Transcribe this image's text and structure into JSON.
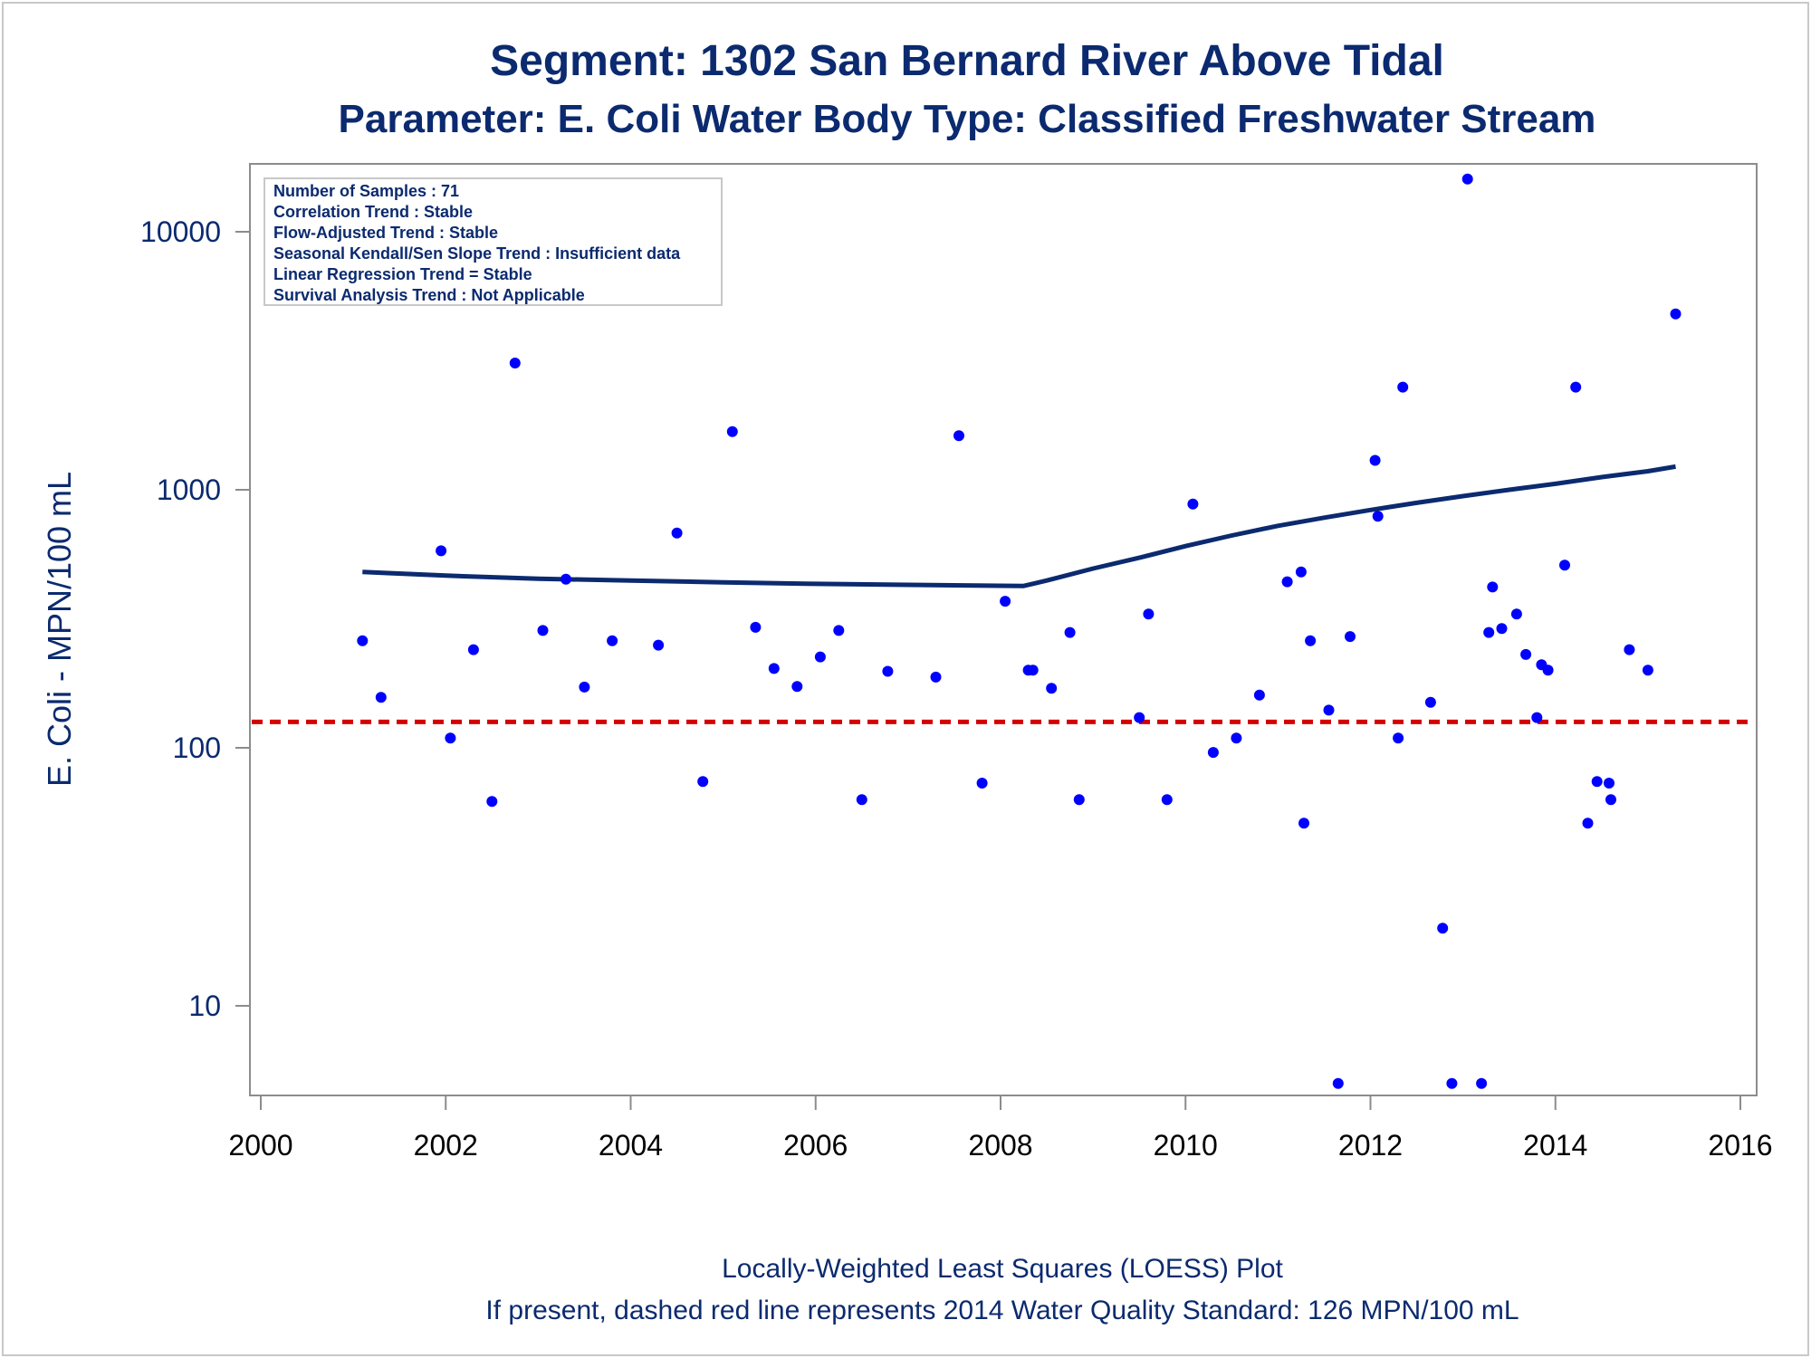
{
  "chart_data": {
    "type": "scatter",
    "title": "Segment: 1302  San Bernard River Above Tidal",
    "subtitle": "Parameter: E. Coli   Water Body Type: Classified Freshwater Stream",
    "xlabel": "",
    "ylabel": "E. Coli - MPN/100 mL",
    "x_scale": "linear",
    "y_scale": "log",
    "xlim": [
      2000,
      2016
    ],
    "ylim": [
      4.9,
      17000
    ],
    "x_ticks": [
      "2000",
      "2002",
      "2004",
      "2006",
      "2008",
      "2010",
      "2012",
      "2014",
      "2016"
    ],
    "y_ticks": [
      {
        "value": 10,
        "label": "10"
      },
      {
        "value": 100,
        "label": "100"
      },
      {
        "value": 1000,
        "label": "1000"
      },
      {
        "value": 10000,
        "label": "10000"
      }
    ],
    "grid": false,
    "info_box": [
      "Number of Samples : 71",
      "Correlation Trend : Stable",
      "Flow-Adjusted Trend : Stable",
      "Seasonal Kendall/Sen Slope Trend : Insufficient data",
      "Linear Regression Trend = Stable",
      "Survival Analysis Trend : Not Applicable"
    ],
    "reference_line": {
      "value": 126,
      "style": "dashed",
      "color": "#d40000"
    },
    "footnotes": [
      "Locally-Weighted Least Squares (LOESS) Plot",
      "If present, dashed red line represents 2014 Water Quality Standard: 126 MPN/100 mL"
    ],
    "series": [
      {
        "kind": "points",
        "color": "#0000ff",
        "points": [
          [
            2001.1,
            260
          ],
          [
            2001.3,
            157
          ],
          [
            2001.95,
            580
          ],
          [
            2002.05,
            109
          ],
          [
            2002.3,
            240
          ],
          [
            2002.5,
            62
          ],
          [
            2002.75,
            3100
          ],
          [
            2003.05,
            285
          ],
          [
            2003.3,
            450
          ],
          [
            2003.5,
            172
          ],
          [
            2003.8,
            260
          ],
          [
            2004.3,
            250
          ],
          [
            2004.5,
            680
          ],
          [
            2004.78,
            74
          ],
          [
            2005.1,
            1680
          ],
          [
            2005.35,
            293
          ],
          [
            2005.55,
            203
          ],
          [
            2005.8,
            173
          ],
          [
            2006.05,
            225
          ],
          [
            2006.25,
            285
          ],
          [
            2006.5,
            63
          ],
          [
            2006.78,
            198
          ],
          [
            2007.3,
            188
          ],
          [
            2007.55,
            1620
          ],
          [
            2007.8,
            73
          ],
          [
            2008.05,
            370
          ],
          [
            2008.3,
            200
          ],
          [
            2008.35,
            200
          ],
          [
            2008.55,
            170
          ],
          [
            2008.75,
            280
          ],
          [
            2008.85,
            63
          ],
          [
            2009.5,
            131
          ],
          [
            2009.6,
            330
          ],
          [
            2009.8,
            63
          ],
          [
            2010.08,
            880
          ],
          [
            2010.3,
            96
          ],
          [
            2010.55,
            109
          ],
          [
            2010.8,
            160
          ],
          [
            2011.1,
            440
          ],
          [
            2011.25,
            480
          ],
          [
            2011.28,
            51
          ],
          [
            2011.35,
            260
          ],
          [
            2011.55,
            140
          ],
          [
            2011.65,
            5
          ],
          [
            2011.78,
            270
          ],
          [
            2012.05,
            1300
          ],
          [
            2012.08,
            790
          ],
          [
            2012.3,
            109
          ],
          [
            2012.35,
            2500
          ],
          [
            2012.65,
            150
          ],
          [
            2012.78,
            20
          ],
          [
            2012.88,
            5
          ],
          [
            2013.05,
            16000
          ],
          [
            2013.2,
            5
          ],
          [
            2013.28,
            280
          ],
          [
            2013.32,
            420
          ],
          [
            2013.42,
            290
          ],
          [
            2013.58,
            330
          ],
          [
            2013.68,
            230
          ],
          [
            2013.8,
            131
          ],
          [
            2013.85,
            210
          ],
          [
            2013.92,
            200
          ],
          [
            2014.1,
            510
          ],
          [
            2014.22,
            2500
          ],
          [
            2014.35,
            51
          ],
          [
            2014.45,
            74
          ],
          [
            2014.58,
            73
          ],
          [
            2014.6,
            63
          ],
          [
            2014.8,
            240
          ],
          [
            2015.0,
            200
          ],
          [
            2015.3,
            4800
          ]
        ]
      },
      {
        "kind": "loess",
        "color": "#0b2a6f",
        "points": [
          [
            2001.1,
            480
          ],
          [
            2002.0,
            465
          ],
          [
            2003.0,
            452
          ],
          [
            2004.0,
            445
          ],
          [
            2005.0,
            438
          ],
          [
            2006.0,
            432
          ],
          [
            2007.0,
            428
          ],
          [
            2007.6,
            426
          ],
          [
            2008.25,
            424
          ],
          [
            2008.5,
            445
          ],
          [
            2009.0,
            495
          ],
          [
            2009.5,
            545
          ],
          [
            2010.0,
            605
          ],
          [
            2010.5,
            665
          ],
          [
            2011.0,
            725
          ],
          [
            2011.5,
            780
          ],
          [
            2012.0,
            835
          ],
          [
            2012.5,
            890
          ],
          [
            2013.0,
            945
          ],
          [
            2013.5,
            1000
          ],
          [
            2014.0,
            1055
          ],
          [
            2014.5,
            1120
          ],
          [
            2015.0,
            1180
          ],
          [
            2015.3,
            1230
          ]
        ]
      }
    ]
  }
}
